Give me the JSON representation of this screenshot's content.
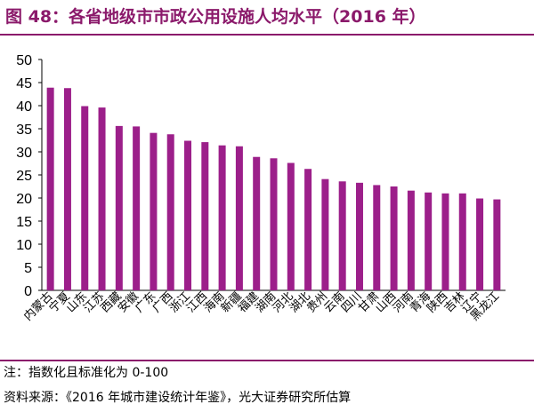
{
  "figure_title": "图 48：各省地级市市政公用设施人均水平（2016 年）",
  "note": "注：指数化且标准化为 0-100",
  "source": "资料来源：《2016 年城市建设统计年鉴》，光大证券研究所估算",
  "colors": {
    "bar": "#9c1f8a",
    "title": "#8b1a6b",
    "axis": "#000000"
  },
  "chart_data": {
    "type": "bar",
    "categories": [
      "内蒙古",
      "宁夏",
      "山东",
      "江苏",
      "西藏",
      "安徽",
      "广东",
      "广西",
      "浙江",
      "江西",
      "海南",
      "新疆",
      "福建",
      "湖南",
      "河北",
      "湖北",
      "贵州",
      "云南",
      "四川",
      "甘肃",
      "山西",
      "河南",
      "青海",
      "陕西",
      "吉林",
      "辽宁",
      "黑龙江"
    ],
    "values": [
      43.9,
      43.8,
      39.9,
      39.6,
      35.6,
      35.5,
      34.1,
      33.8,
      32.4,
      32.1,
      31.4,
      31.2,
      28.9,
      28.6,
      27.6,
      26.3,
      24.1,
      23.6,
      23.3,
      22.8,
      22.5,
      21.6,
      21.2,
      21.0,
      21.0,
      19.9,
      19.7
    ],
    "ylim": [
      0,
      50
    ],
    "yticks": [
      0,
      5,
      10,
      15,
      20,
      25,
      30,
      35,
      40,
      45,
      50
    ],
    "grid": false,
    "title": "",
    "xlabel": "",
    "ylabel": ""
  }
}
